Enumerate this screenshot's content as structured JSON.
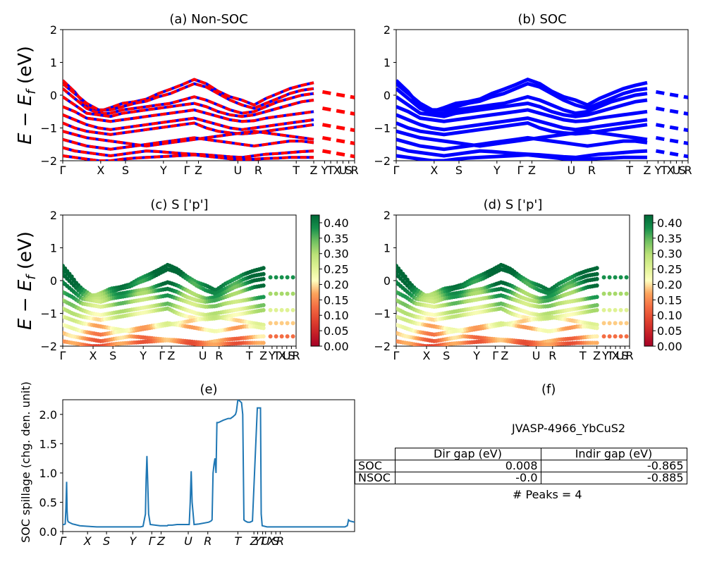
{
  "chart_data": [
    {
      "type": "line",
      "title": "(a) Non-SOC",
      "ylabel": "E − E_f (eV)",
      "ylim": [
        -2,
        2
      ],
      "yticks": [
        "−2",
        "−1",
        "0",
        "1",
        "2"
      ],
      "xticks": [
        "Γ",
        "X",
        "S",
        "Y",
        "Γ",
        "Z",
        "U",
        "R",
        "T",
        "Z",
        "Y",
        "T",
        "X",
        "U",
        "S",
        "R"
      ],
      "series": [
        {
          "values": [
            0.45,
            0.1,
            -0.35,
            -0.5,
            -0.38,
            -0.25,
            -0.2,
            -0.12,
            0.05,
            0.18,
            0.32,
            0.48,
            0.35,
            0.12,
            -0.05,
            -0.15,
            -0.3,
            -0.1,
            0.05,
            0.2,
            0.3,
            0.38
          ]
        },
        {
          "values": [
            0.35,
            0.05,
            -0.25,
            -0.45,
            -0.45,
            -0.35,
            -0.25,
            -0.18,
            -0.05,
            0.05,
            0.2,
            0.35,
            0.25,
            0.05,
            -0.15,
            -0.3,
            -0.4,
            -0.25,
            -0.1,
            0.05,
            0.15,
            0.2
          ]
        },
        {
          "values": [
            0.2,
            -0.1,
            -0.4,
            -0.55,
            -0.55,
            -0.45,
            -0.4,
            -0.35,
            -0.3,
            -0.25,
            -0.15,
            -0.05,
            -0.15,
            -0.3,
            -0.45,
            -0.55,
            -0.5,
            -0.35,
            -0.2,
            -0.1,
            0.0,
            0.05
          ]
        },
        {
          "values": [
            -0.05,
            -0.3,
            -0.55,
            -0.6,
            -0.65,
            -0.55,
            -0.5,
            -0.45,
            -0.4,
            -0.35,
            -0.3,
            -0.25,
            -0.35,
            -0.5,
            -0.6,
            -0.65,
            -0.6,
            -0.5,
            -0.4,
            -0.3,
            -0.2,
            -0.15
          ]
        },
        {
          "values": [
            -0.35,
            -0.5,
            -0.7,
            -0.75,
            -0.8,
            -0.75,
            -0.7,
            -0.65,
            -0.6,
            -0.55,
            -0.5,
            -0.45,
            -0.55,
            -0.65,
            -0.75,
            -0.8,
            -0.78,
            -0.7,
            -0.65,
            -0.6,
            -0.55,
            -0.5
          ]
        },
        {
          "values": [
            -0.6,
            -0.75,
            -0.9,
            -1.0,
            -1.05,
            -1.0,
            -0.95,
            -0.9,
            -0.85,
            -0.8,
            -0.75,
            -0.7,
            -0.8,
            -0.9,
            -1.0,
            -1.05,
            -1.0,
            -0.95,
            -0.9,
            -0.85,
            -0.8,
            -0.75
          ]
        },
        {
          "values": [
            -0.85,
            -1.0,
            -1.1,
            -1.15,
            -1.2,
            -1.15,
            -1.1,
            -1.05,
            -1.0,
            -0.95,
            -0.9,
            -0.85,
            -1.0,
            -1.1,
            -1.15,
            -1.18,
            -1.15,
            -1.1,
            -1.05,
            -1.0,
            -0.95,
            -0.9
          ]
        },
        {
          "values": [
            -1.1,
            -1.2,
            -1.3,
            -1.35,
            -1.4,
            -1.45,
            -1.5,
            -1.55,
            -1.5,
            -1.45,
            -1.4,
            -1.35,
            -1.3,
            -1.25,
            -1.2,
            -1.15,
            -1.1,
            -1.15,
            -1.2,
            -1.25,
            -1.3,
            -1.35
          ]
        },
        {
          "values": [
            -1.35,
            -1.45,
            -1.55,
            -1.6,
            -1.65,
            -1.6,
            -1.55,
            -1.5,
            -1.45,
            -1.4,
            -1.35,
            -1.3,
            -1.35,
            -1.4,
            -1.45,
            -1.5,
            -1.55,
            -1.5,
            -1.45,
            -1.4,
            -1.4,
            -1.45
          ]
        },
        {
          "values": [
            -1.6,
            -1.7,
            -1.75,
            -1.8,
            -1.85,
            -1.8,
            -1.75,
            -1.7,
            -1.72,
            -1.75,
            -1.78,
            -1.8,
            -1.82,
            -1.85,
            -1.88,
            -1.9,
            -1.85,
            -1.8,
            -1.78,
            -1.75,
            -1.72,
            -1.7
          ]
        },
        {
          "values": [
            -1.85,
            -1.9,
            -1.95,
            -2.0,
            -2.0,
            -1.95,
            -1.92,
            -1.9,
            -1.88,
            -1.86,
            -1.84,
            -1.82,
            -1.86,
            -1.9,
            -1.94,
            -1.96,
            -1.95,
            -1.93,
            -1.92,
            -1.9,
            -1.9,
            -1.9
          ]
        }
      ]
    },
    {
      "type": "line",
      "title": "(b) SOC",
      "ylim": [
        -2,
        2
      ],
      "yticks": [
        "−2",
        "−1",
        "0",
        "1",
        "2"
      ],
      "xticks": [
        "Γ",
        "X",
        "S",
        "Y",
        "Γ",
        "Z",
        "U",
        "R",
        "T",
        "Z",
        "Y",
        "T",
        "X",
        "U",
        "S",
        "R"
      ]
    },
    {
      "type": "scatter",
      "title": "(c)  S ['p']",
      "ylabel": "E − E_f (eV)",
      "ylim": [
        -2,
        2
      ],
      "yticks": [
        "−2",
        "−1",
        "0",
        "1",
        "2"
      ],
      "xticks": [
        "Γ",
        "X",
        "S",
        "Y",
        "Γ",
        "Z",
        "U",
        "R",
        "T",
        "Z",
        "Y",
        "T",
        "X",
        "U",
        "S",
        "R"
      ],
      "colorbar": {
        "min": 0.0,
        "max": 0.425,
        "ticks": [
          "0.00",
          "0.05",
          "0.10",
          "0.15",
          "0.20",
          "0.25",
          "0.30",
          "0.35",
          "0.40"
        ],
        "colormap": "RdYlGn"
      }
    },
    {
      "type": "scatter",
      "title": "(d) S ['p']",
      "ylim": [
        -2,
        2
      ],
      "yticks": [
        "−2",
        "−1",
        "0",
        "1",
        "2"
      ],
      "xticks": [
        "Γ",
        "X",
        "S",
        "Y",
        "Γ",
        "Z",
        "U",
        "R",
        "T",
        "Z",
        "Y",
        "T",
        "X",
        "U",
        "S",
        "R"
      ],
      "colorbar": {
        "min": 0.0,
        "max": 0.425,
        "ticks": [
          "0.00",
          "0.05",
          "0.10",
          "0.15",
          "0.20",
          "0.25",
          "0.30",
          "0.35",
          "0.40"
        ],
        "colormap": "RdYlGn"
      }
    },
    {
      "type": "line",
      "title": "(e)",
      "ylabel": "SOC spillage (chg. den. unit)",
      "ylim": [
        0,
        2.25
      ],
      "yticks": [
        "0.0",
        "0.5",
        "1.0",
        "1.5",
        "2.0"
      ],
      "xticks": [
        "Γ",
        "X",
        "S",
        "Y",
        "Γ",
        "Z",
        "U",
        "R",
        "T",
        "Z",
        "Y",
        "T",
        "U",
        "X",
        "S",
        "R"
      ],
      "x": [
        0,
        0.5,
        1.0,
        1.3,
        1.6,
        1.8,
        2.0,
        2.2,
        2.5,
        3.0,
        3.5,
        4.0,
        5.0,
        7.0,
        10.0,
        14.0,
        20.0,
        26.0,
        32.0,
        33.0,
        34.0,
        34.3,
        34.6,
        34.9,
        35.3,
        36.0,
        40.0,
        43.0,
        43.3,
        43.6,
        44.0,
        45.0,
        47.0,
        52.0,
        52.4,
        52.8,
        53.2,
        54.0,
        56.0,
        60.0,
        61.0,
        61.4,
        61.8,
        62.2,
        62.6,
        63.0,
        63.4,
        64.0,
        66.0,
        68.0,
        69.0,
        70.0,
        71.0,
        71.4,
        72.0,
        73.0,
        73.5,
        74.0,
        74.5,
        75.0,
        76.0,
        76.5,
        77.0,
        78.0,
        80.0,
        81.0,
        81.3,
        81.6,
        82.0,
        84.0,
        90.0,
        100.0,
        110.0,
        116.0,
        117.0,
        117.5,
        118.0,
        119.0,
        120.0
      ],
      "values": [
        0.12,
        0.12,
        0.13,
        0.4,
        0.85,
        0.35,
        0.2,
        0.17,
        0.16,
        0.15,
        0.14,
        0.13,
        0.12,
        0.1,
        0.09,
        0.08,
        0.08,
        0.08,
        0.08,
        0.09,
        0.3,
        0.9,
        1.29,
        0.9,
        0.3,
        0.12,
        0.1,
        0.1,
        0.11,
        0.11,
        0.11,
        0.11,
        0.12,
        0.12,
        0.5,
        1.03,
        0.5,
        0.12,
        0.13,
        0.16,
        0.18,
        0.2,
        1.0,
        1.15,
        1.25,
        1.0,
        1.86,
        1.86,
        1.9,
        1.93,
        1.93,
        1.96,
        2.0,
        2.05,
        2.25,
        2.22,
        2.2,
        2.0,
        0.2,
        0.18,
        0.16,
        0.16,
        0.16,
        0.18,
        2.11,
        2.11,
        2.11,
        0.3,
        0.1,
        0.08,
        0.08,
        0.08,
        0.08,
        0.08,
        0.1,
        0.2,
        0.18,
        0.17,
        0.16
      ]
    }
  ],
  "info": {
    "title": "(f)",
    "material": "JVASP-4966_YbCuS2",
    "col_dir": "Dir gap (eV)",
    "col_indir": "Indir gap (eV)",
    "rows": [
      {
        "label": "SOC",
        "dir": "0.008",
        "indir": "-0.865"
      },
      {
        "label": "NSOC",
        "dir": "-0.0",
        "indir": "-0.885"
      }
    ],
    "peaks": "# Peaks = 4"
  }
}
